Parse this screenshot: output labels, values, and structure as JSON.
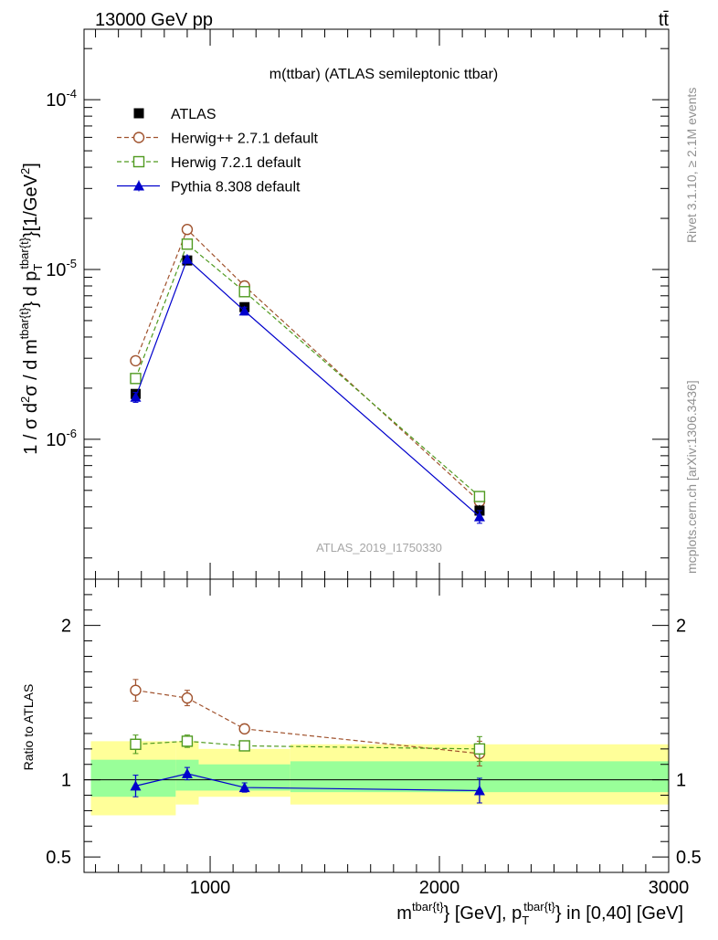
{
  "header": {
    "left": "13000 GeV pp",
    "right": "tt̄"
  },
  "side": {
    "rivet": "Rivet 3.1.10, ≥ 2.1M events",
    "source": "mcplots.cern.ch [arXiv:1306.3436]"
  },
  "chart_data": [
    {
      "type": "line",
      "title": "m(ttbar) (ATLAS semileptonic ttbar)",
      "watermark": "ATLAS_2019_I1750330",
      "ylabel": "1 / σ d²σ / d m^tbar{t} d p_T^tbar{t} [1/GeV²]",
      "yscale": "log",
      "xlim": [
        450,
        3000
      ],
      "ylim": [
        1.5e-07,
        0.00026
      ],
      "yticks": [
        {
          "value": 1e-06,
          "label": "10^-6"
        },
        {
          "value": 1e-05,
          "label": "10^-5"
        },
        {
          "value": 0.0001,
          "label": "10^-4"
        }
      ],
      "legend_position": "top-left",
      "x": [
        675,
        900,
        1150,
        2175
      ],
      "series": [
        {
          "name": "ATLAS",
          "color": "#000000",
          "marker": "square-filled",
          "values": [
            1.85e-06,
            1.13e-05,
            6e-06,
            3.8e-07
          ],
          "errors": [
            1e-07,
            5e-07,
            3e-07,
            3e-08
          ]
        },
        {
          "name": "Herwig++ 2.7.1 default",
          "color": "#a0522d",
          "marker": "circle-open",
          "dash": "dashed",
          "values": [
            2.9e-06,
            1.72e-05,
            8e-06,
            4.3e-07
          ],
          "errors": [
            1.5e-07,
            6e-07,
            3e-07,
            3e-08
          ]
        },
        {
          "name": "Herwig 7.2.1 default",
          "color": "#4f9a1f",
          "marker": "square-open",
          "dash": "dashed",
          "values": [
            2.28e-06,
            1.41e-05,
            7.4e-06,
            4.6e-07
          ],
          "errors": [
            1.2e-07,
            5e-07,
            3e-07,
            3e-08
          ]
        },
        {
          "name": "Pythia 8.308 default",
          "color": "#0000cc",
          "marker": "triangle-filled",
          "dash": "solid",
          "values": [
            1.77e-06,
            1.15e-05,
            5.7e-06,
            3.5e-07
          ],
          "errors": [
            1.2e-07,
            5e-07,
            3e-07,
            3e-08
          ]
        }
      ]
    },
    {
      "type": "line",
      "ylabel": "Ratio to ATLAS",
      "xlabel": "m^tbar{t} [GeV], p_T^tbar{t} in [0,40] [GeV]",
      "xlim": [
        450,
        3000
      ],
      "ylim": [
        0.4,
        2.3
      ],
      "xticks": [
        1000,
        2000,
        3000
      ],
      "yticks": [
        0.5,
        1,
        2
      ],
      "bins": [
        {
          "lo": 480,
          "hi": 850,
          "stat": [
            0.89,
            1.13
          ],
          "total": [
            0.77,
            1.25
          ]
        },
        {
          "lo": 850,
          "hi": 950,
          "stat": [
            0.93,
            1.13
          ],
          "total": [
            0.84,
            1.25
          ]
        },
        {
          "lo": 950,
          "hi": 1350,
          "stat": [
            0.93,
            1.1
          ],
          "total": [
            0.89,
            1.2
          ]
        },
        {
          "lo": 1350,
          "hi": 3000,
          "stat": [
            0.92,
            1.12
          ],
          "total": [
            0.84,
            1.23
          ]
        }
      ],
      "x": [
        675,
        900,
        1150,
        2175
      ],
      "series": [
        {
          "name": "Herwig++ 2.7.1 default",
          "color": "#a0522d",
          "marker": "circle-open",
          "dash": "dashed",
          "values": [
            1.58,
            1.53,
            1.33,
            1.17
          ],
          "errors": [
            0.07,
            0.05,
            0.03,
            0.08
          ]
        },
        {
          "name": "Herwig 7.2.1 default",
          "color": "#4f9a1f",
          "marker": "square-open",
          "dash": "dashed",
          "values": [
            1.23,
            1.25,
            1.22,
            1.2
          ],
          "errors": [
            0.06,
            0.04,
            0.03,
            0.08
          ]
        },
        {
          "name": "Pythia 8.308 default",
          "color": "#0000cc",
          "marker": "triangle-filled",
          "dash": "solid",
          "values": [
            0.96,
            1.04,
            0.95,
            0.93
          ],
          "errors": [
            0.07,
            0.04,
            0.03,
            0.08
          ]
        }
      ]
    }
  ]
}
